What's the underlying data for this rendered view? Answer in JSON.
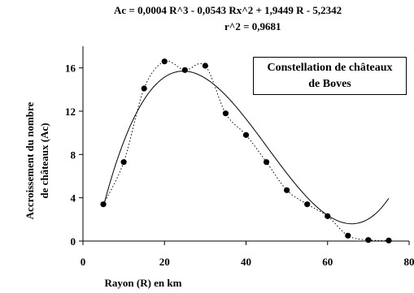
{
  "chart_data": {
    "type": "scatter",
    "title_line1": "Ac = 0,0004 R^3 - 0,0543 Rx^2 + 1,9449 R - 5,2342",
    "title_line2": "r^2 = 0,9681",
    "xlabel": "Rayon (R) en km",
    "ylabel_line1": "Accroissement du nombre",
    "ylabel_line2": "de châteaux (Ac)",
    "legend_line1": "Constellation de châteaux",
    "legend_line2": "de Boves",
    "xlim": [
      0,
      80
    ],
    "ylim": [
      0,
      18
    ],
    "x_ticks": [
      0,
      20,
      40,
      60,
      80
    ],
    "x_tick_labels": [
      "0",
      "20",
      "40",
      "60",
      "80"
    ],
    "y_ticks": [
      0,
      4,
      8,
      12,
      16
    ],
    "y_tick_labels": [
      "0",
      "4",
      "8",
      "12",
      "16"
    ],
    "grid": false,
    "series": [
      {
        "style": "markers-dotted-line",
        "x": [
          5,
          10,
          15,
          20,
          25,
          30,
          35,
          40,
          45,
          50,
          55,
          60,
          65,
          70,
          75
        ],
        "y": [
          3.4,
          7.3,
          14.1,
          16.6,
          15.8,
          16.2,
          11.8,
          9.8,
          7.3,
          4.7,
          3.4,
          2.3,
          0.5,
          0.1,
          0.05
        ]
      },
      {
        "style": "solid-curve",
        "coefficients": [
          0.0004,
          -0.0543,
          1.9449,
          -5.2342
        ],
        "x_range": [
          5,
          75
        ]
      }
    ],
    "colors": {
      "axes": "#000000",
      "markers": "#000000",
      "curve": "#000000"
    }
  }
}
